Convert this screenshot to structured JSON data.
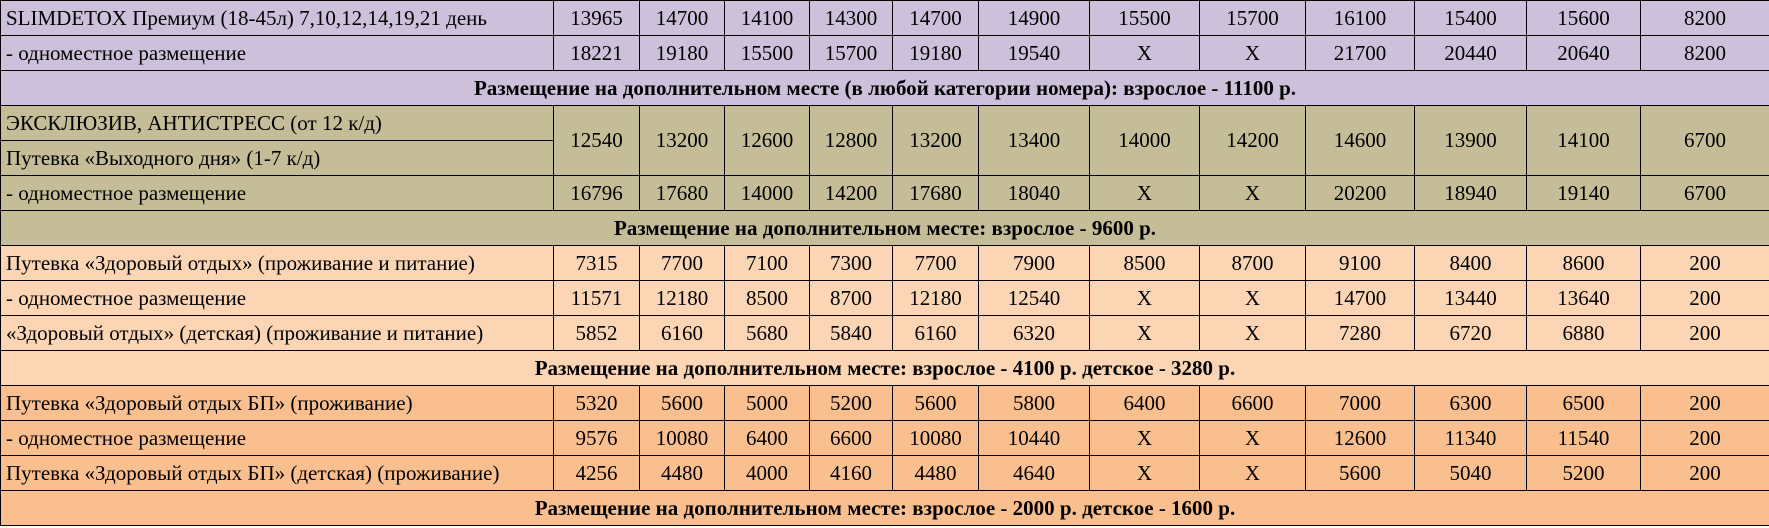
{
  "colors": {
    "lavender": "#ccc0da",
    "khaki": "#c4bd97",
    "peach": "#fcd5b4",
    "orange": "#fabf8f"
  },
  "sections": [
    {
      "color": "#ccc0da",
      "rows": [
        {
          "labels": [
            "SLIMDETOX Премиум (18-45л) 7,10,12,14,19,21 день"
          ],
          "values": [
            "13965",
            "14700",
            "14100",
            "14300",
            "14700",
            "14900",
            "15500",
            "15700",
            "16100",
            "15400",
            "15600",
            "8200"
          ]
        },
        {
          "labels": [
            "- одноместное размещение"
          ],
          "values": [
            "18221",
            "19180",
            "15500",
            "15700",
            "19180",
            "19540",
            "X",
            "X",
            "21700",
            "20440",
            "20640",
            "8200"
          ]
        }
      ],
      "note": "Размещение на дополнительном месте (в любой категории номера): взрослое - 11100 р."
    },
    {
      "color": "#c4bd97",
      "rows": [
        {
          "labels": [
            "ЭКСКЛЮЗИВ, АНТИСТРЕСС (от 12 к/д)",
            "Путевка «Выходного дня» (1-7 к/д)"
          ],
          "values": [
            "12540",
            "13200",
            "12600",
            "12800",
            "13200",
            "13400",
            "14000",
            "14200",
            "14600",
            "13900",
            "14100",
            "6700"
          ]
        },
        {
          "labels": [
            "- одноместное размещение"
          ],
          "values": [
            "16796",
            "17680",
            "14000",
            "14200",
            "17680",
            "18040",
            "X",
            "X",
            "20200",
            "18940",
            "19140",
            "6700"
          ]
        }
      ],
      "note": "Размещение на дополнительном месте: взрослое - 9600 р."
    },
    {
      "color": "#fcd5b4",
      "rows": [
        {
          "labels": [
            "Путевка «Здоровый отдых» (проживание и питание)"
          ],
          "values": [
            "7315",
            "7700",
            "7100",
            "7300",
            "7700",
            "7900",
            "8500",
            "8700",
            "9100",
            "8400",
            "8600",
            "200"
          ]
        },
        {
          "labels": [
            "- одноместное размещение"
          ],
          "values": [
            "11571",
            "12180",
            "8500",
            "8700",
            "12180",
            "12540",
            "X",
            "X",
            "14700",
            "13440",
            "13640",
            "200"
          ]
        },
        {
          "labels": [
            "«Здоровый отдых» (детская) (проживание и питание)"
          ],
          "values": [
            "5852",
            "6160",
            "5680",
            "5840",
            "6160",
            "6320",
            "X",
            "X",
            "7280",
            "6720",
            "6880",
            "200"
          ]
        }
      ],
      "note": "Размещение на дополнительном месте: взрослое - 4100 р. детское - 3280 р."
    },
    {
      "color": "#fabf8f",
      "rows": [
        {
          "labels": [
            "Путевка «Здоровый отдых БП» (проживание)"
          ],
          "values": [
            "5320",
            "5600",
            "5000",
            "5200",
            "5600",
            "5800",
            "6400",
            "6600",
            "7000",
            "6300",
            "6500",
            "200"
          ]
        },
        {
          "labels": [
            "- одноместное размещение"
          ],
          "values": [
            "9576",
            "10080",
            "6400",
            "6600",
            "10080",
            "10440",
            "X",
            "X",
            "12600",
            "11340",
            "11540",
            "200"
          ]
        },
        {
          "labels": [
            "Путевка «Здоровый отдых БП» (детская) (проживание)"
          ],
          "values": [
            "4256",
            "4480",
            "4000",
            "4160",
            "4480",
            "4640",
            "X",
            "X",
            "5600",
            "5040",
            "5200",
            "200"
          ]
        }
      ],
      "note": "Размещение на дополнительном месте: взрослое - 2000 р. детское - 1600 р."
    }
  ]
}
